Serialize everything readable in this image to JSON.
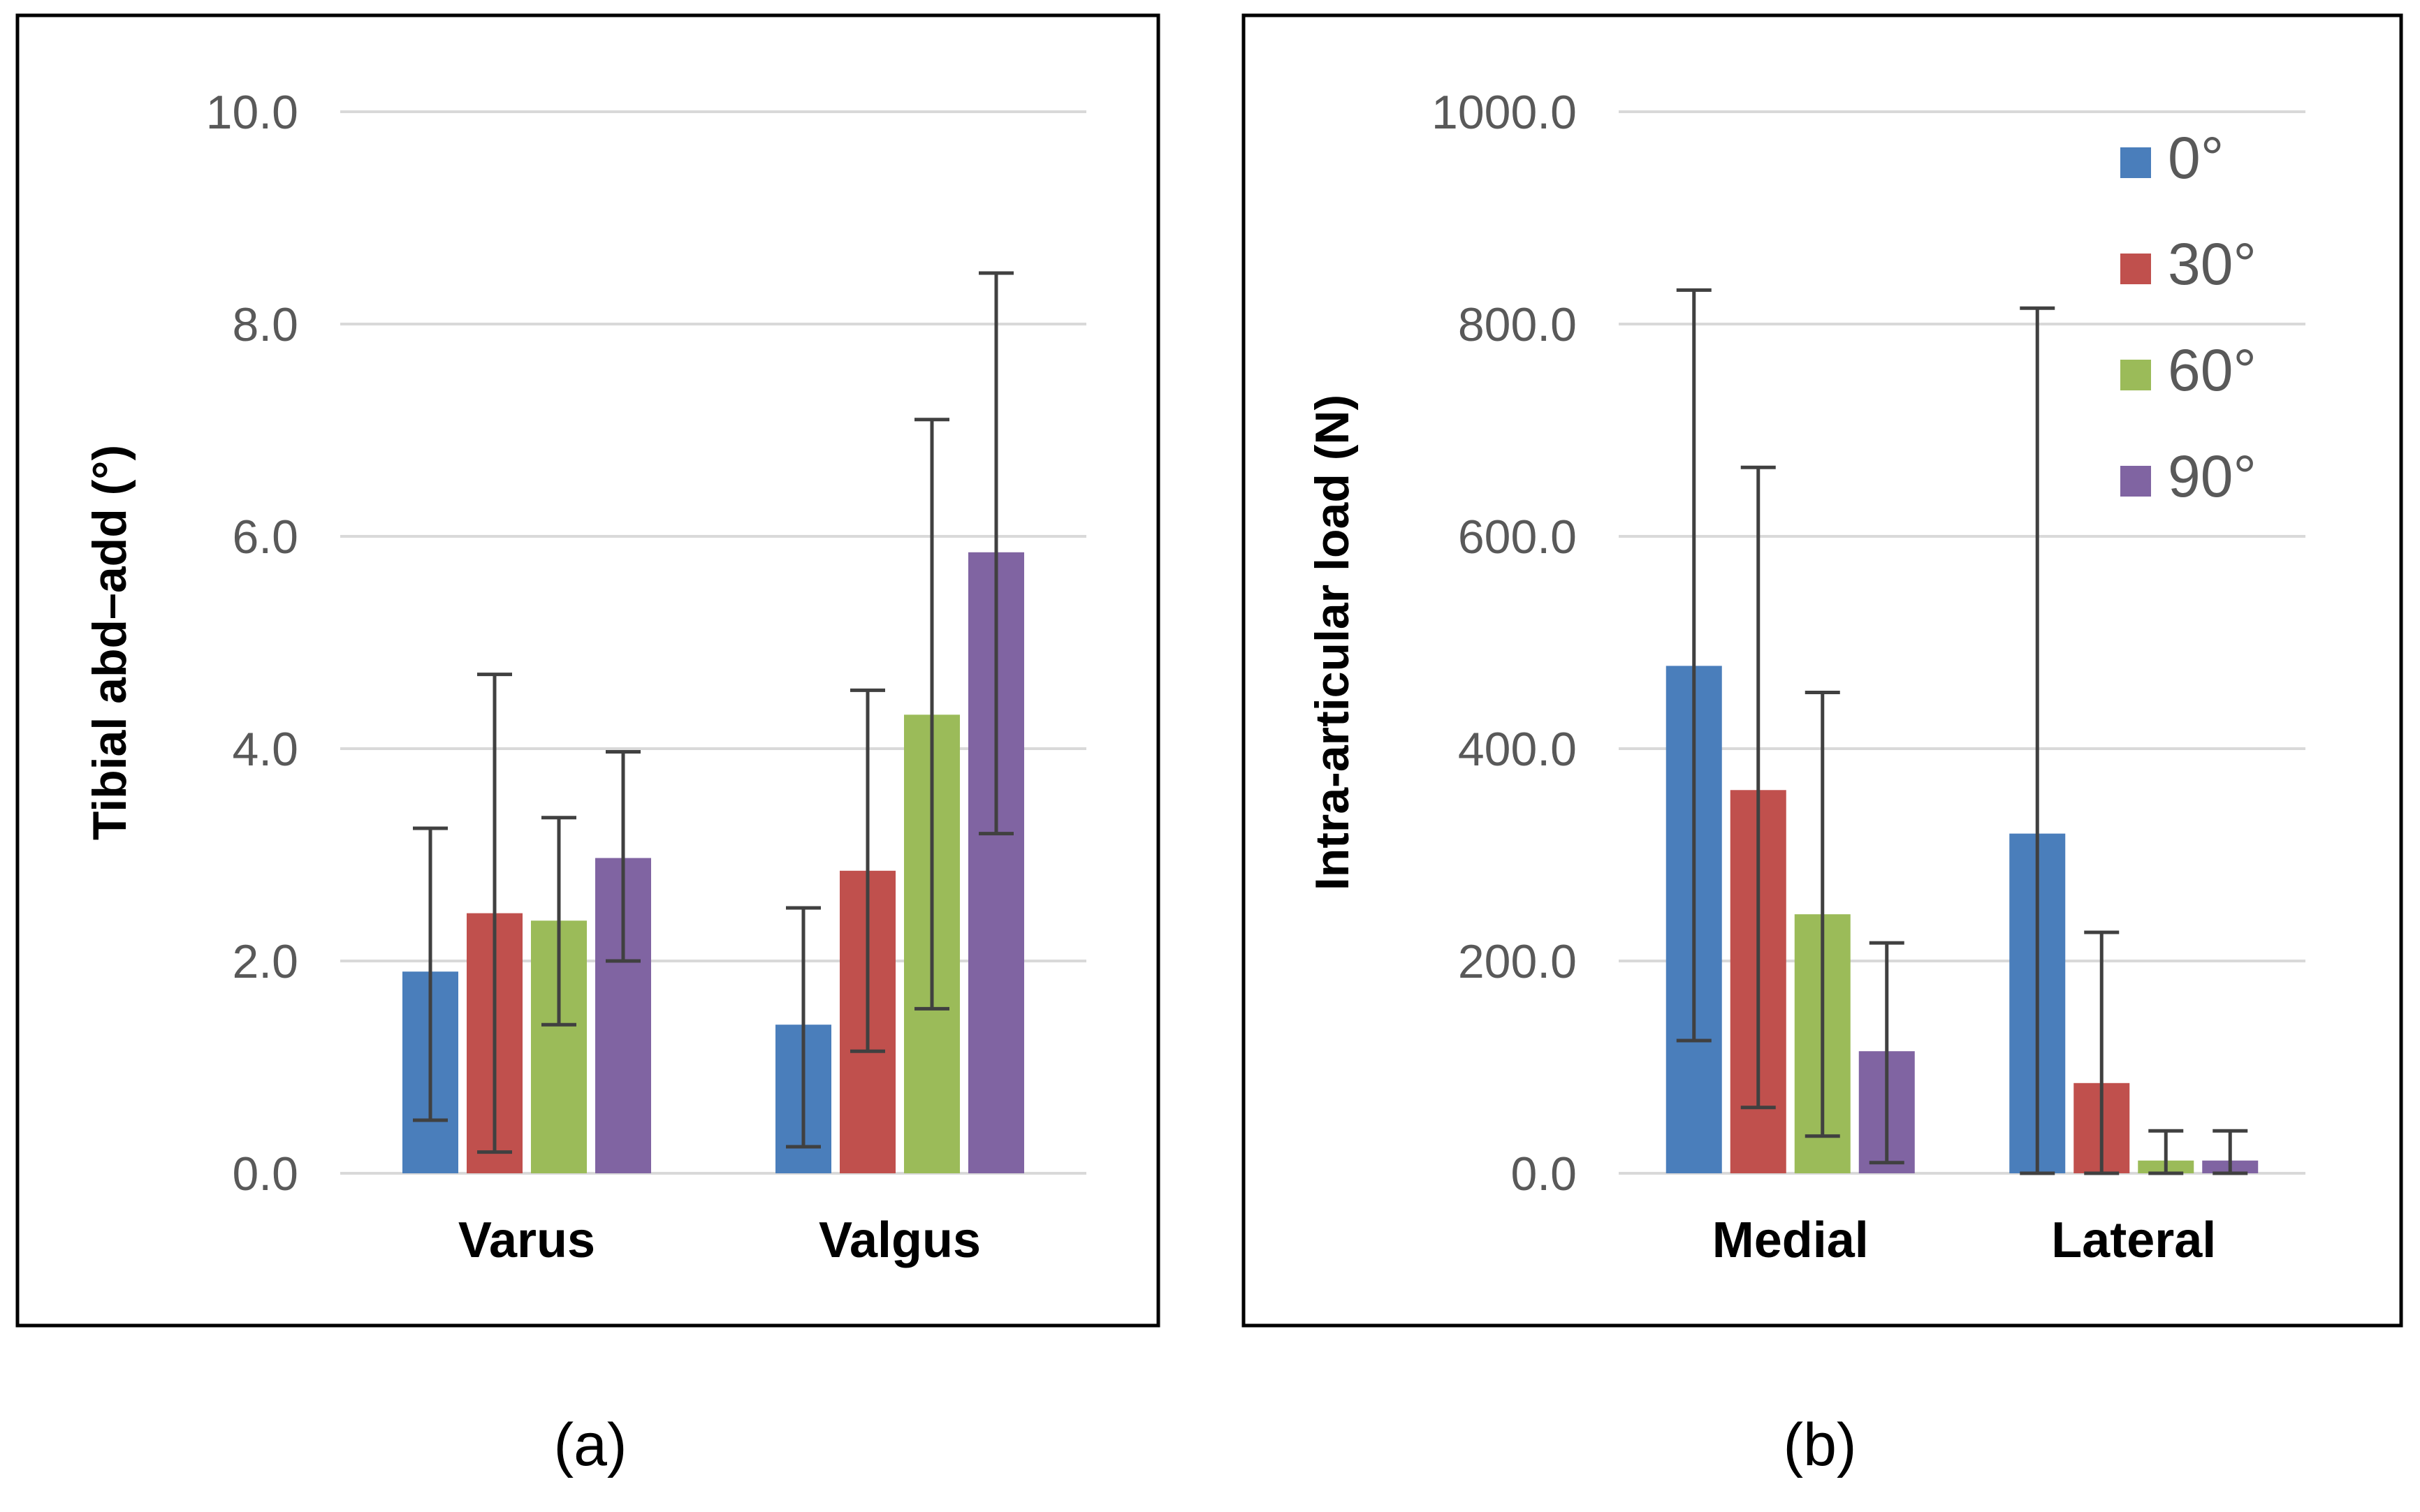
{
  "colors": {
    "series": [
      "#4a7ebb",
      "#c0504d",
      "#9bbb59",
      "#8064a2"
    ],
    "grid": "#d9d9d9",
    "frame": "#000000",
    "errorbar": "#404040",
    "tick_text": "#595959"
  },
  "captions": {
    "a": "(a)",
    "b": "(b)"
  },
  "chart_data": [
    {
      "type": "bar",
      "ylabel": "Tibial abd–add (°)",
      "xlabel": "",
      "categories": [
        "Varus",
        "Valgus"
      ],
      "ylim": [
        0,
        10
      ],
      "yticks": [
        "0.0",
        "2.0",
        "4.0",
        "6.0",
        "8.0",
        "10.0"
      ],
      "ytick_values": [
        0,
        2,
        4,
        6,
        8,
        10
      ],
      "grid": true,
      "legend": "none",
      "series": [
        {
          "name": "0°",
          "values": [
            1.9,
            1.4
          ],
          "err_low": [
            0.5,
            0.25
          ],
          "err_high": [
            3.25,
            2.5
          ]
        },
        {
          "name": "30°",
          "values": [
            2.45,
            2.85
          ],
          "err_low": [
            0.2,
            1.15
          ],
          "err_high": [
            4.7,
            4.55
          ]
        },
        {
          "name": "60°",
          "values": [
            2.38,
            4.32
          ],
          "err_low": [
            1.4,
            1.55
          ],
          "err_high": [
            3.35,
            7.1
          ]
        },
        {
          "name": "90°",
          "values": [
            2.97,
            5.85
          ],
          "err_low": [
            2.0,
            3.2
          ],
          "err_high": [
            3.97,
            8.48
          ]
        }
      ]
    },
    {
      "type": "bar",
      "ylabel": "Intra-articular load (N)",
      "xlabel": "",
      "categories": [
        "Medial",
        "Lateral"
      ],
      "ylim": [
        0,
        1000
      ],
      "yticks": [
        "0.0",
        "200.0",
        "400.0",
        "600.0",
        "800.0",
        "1000.0"
      ],
      "ytick_values": [
        0,
        200,
        400,
        600,
        800,
        1000
      ],
      "grid": true,
      "legend": "top-right",
      "series": [
        {
          "name": "0°",
          "values": [
            478,
            320
          ],
          "err_low": [
            125,
            0
          ],
          "err_high": [
            832,
            815
          ]
        },
        {
          "name": "30°",
          "values": [
            361,
            85
          ],
          "err_low": [
            62,
            0
          ],
          "err_high": [
            665,
            227
          ]
        },
        {
          "name": "60°",
          "values": [
            244,
            12
          ],
          "err_low": [
            35,
            0
          ],
          "err_high": [
            453,
            40
          ]
        },
        {
          "name": "90°",
          "values": [
            115,
            12
          ],
          "err_low": [
            10,
            0
          ],
          "err_high": [
            217,
            40
          ]
        }
      ]
    }
  ]
}
